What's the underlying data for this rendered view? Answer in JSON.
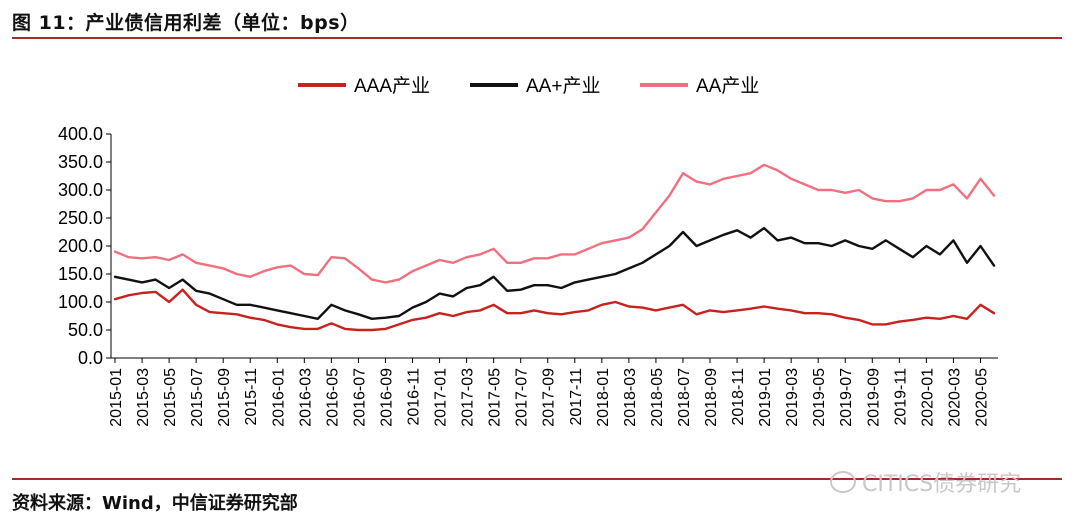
{
  "figure": {
    "title": "图 11：产业债信用利差（单位：bps）",
    "source": "资料来源：Wind，中信证券研究部",
    "watermark": "CITICS债券研究"
  },
  "colors": {
    "rule": "#a52a2a",
    "AAA": "#c8221e",
    "AAplus": "#111111",
    "AA": "#f0707f"
  },
  "chart_data": {
    "type": "line",
    "ylim": [
      0,
      400
    ],
    "yticks": [
      "400.0",
      "350.0",
      "300.0",
      "250.0",
      "200.0",
      "150.0",
      "100.0",
      "50.0",
      "0.0"
    ],
    "ytick_values": [
      400,
      350,
      300,
      250,
      200,
      150,
      100,
      50,
      0
    ],
    "xticks": [
      "2015-01",
      "2015-03",
      "2015-05",
      "2015-07",
      "2015-09",
      "2015-11",
      "2016-01",
      "2016-03",
      "2016-05",
      "2016-07",
      "2016-09",
      "2016-11",
      "2017-01",
      "2017-03",
      "2017-05",
      "2017-07",
      "2017-09",
      "2017-11",
      "2018-01",
      "2018-03",
      "2018-05",
      "2018-07",
      "2018-09",
      "2018-11",
      "2019-01",
      "2019-03",
      "2019-05",
      "2019-07",
      "2019-09",
      "2019-11",
      "2020-01",
      "2020-03",
      "2020-05"
    ],
    "x": [
      "2015-01",
      "2015-02",
      "2015-03",
      "2015-04",
      "2015-05",
      "2015-06",
      "2015-07",
      "2015-08",
      "2015-09",
      "2015-10",
      "2015-11",
      "2015-12",
      "2016-01",
      "2016-02",
      "2016-03",
      "2016-04",
      "2016-05",
      "2016-06",
      "2016-07",
      "2016-08",
      "2016-09",
      "2016-10",
      "2016-11",
      "2016-12",
      "2017-01",
      "2017-02",
      "2017-03",
      "2017-04",
      "2017-05",
      "2017-06",
      "2017-07",
      "2017-08",
      "2017-09",
      "2017-10",
      "2017-11",
      "2017-12",
      "2018-01",
      "2018-02",
      "2018-03",
      "2018-04",
      "2018-05",
      "2018-06",
      "2018-07",
      "2018-08",
      "2018-09",
      "2018-10",
      "2018-11",
      "2018-12",
      "2019-01",
      "2019-02",
      "2019-03",
      "2019-04",
      "2019-05",
      "2019-06",
      "2019-07",
      "2019-08",
      "2019-09",
      "2019-10",
      "2019-11",
      "2019-12",
      "2020-01",
      "2020-02",
      "2020-03",
      "2020-04",
      "2020-05",
      "2020-06"
    ],
    "series": [
      {
        "name": "AAA产业",
        "key": "AAA",
        "values": [
          105,
          112,
          116,
          118,
          100,
          122,
          95,
          82,
          80,
          78,
          72,
          68,
          60,
          55,
          52,
          52,
          62,
          52,
          50,
          50,
          52,
          60,
          68,
          72,
          80,
          75,
          82,
          85,
          95,
          80,
          80,
          85,
          80,
          78,
          82,
          85,
          95,
          100,
          92,
          90,
          85,
          90,
          95,
          78,
          85,
          82,
          85,
          88,
          92,
          88,
          85,
          80,
          80,
          78,
          72,
          68,
          60,
          60,
          65,
          68,
          72,
          70,
          75,
          70,
          95,
          80
        ]
      },
      {
        "name": "AA+产业",
        "key": "AAplus",
        "values": [
          145,
          140,
          135,
          140,
          125,
          140,
          120,
          115,
          105,
          95,
          95,
          90,
          85,
          80,
          75,
          70,
          95,
          85,
          78,
          70,
          72,
          75,
          90,
          100,
          115,
          110,
          125,
          130,
          145,
          120,
          122,
          130,
          130,
          125,
          135,
          140,
          145,
          150,
          160,
          170,
          185,
          200,
          225,
          200,
          210,
          220,
          228,
          215,
          232,
          210,
          215,
          205,
          205,
          200,
          210,
          200,
          195,
          210,
          195,
          180,
          200,
          185,
          210,
          170,
          200,
          165
        ]
      },
      {
        "name": "AA产业",
        "key": "AA",
        "values": [
          190,
          180,
          178,
          180,
          175,
          185,
          170,
          165,
          160,
          150,
          145,
          155,
          162,
          165,
          150,
          148,
          180,
          178,
          160,
          140,
          135,
          140,
          155,
          165,
          175,
          170,
          180,
          185,
          195,
          170,
          170,
          178,
          178,
          185,
          185,
          195,
          205,
          210,
          215,
          230,
          260,
          290,
          330,
          315,
          310,
          320,
          325,
          330,
          345,
          335,
          320,
          310,
          300,
          300,
          295,
          300,
          285,
          280,
          280,
          285,
          300,
          300,
          310,
          285,
          320,
          290
        ]
      }
    ]
  }
}
